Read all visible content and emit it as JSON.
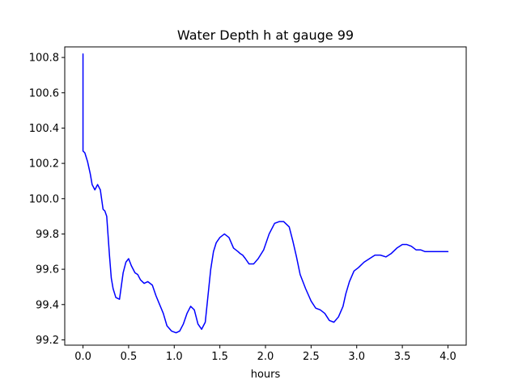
{
  "chart_data": {
    "type": "line",
    "title": "Water Depth h at gauge 99",
    "xlabel": "hours",
    "ylabel": "",
    "xlim": [
      -0.2,
      4.2
    ],
    "ylim": [
      99.17,
      100.86
    ],
    "xticks": [
      0.0,
      0.5,
      1.0,
      1.5,
      2.0,
      2.5,
      3.0,
      3.5,
      4.0
    ],
    "xtick_labels": [
      "0.0",
      "0.5",
      "1.0",
      "1.5",
      "2.0",
      "2.5",
      "3.0",
      "3.5",
      "4.0"
    ],
    "yticks": [
      99.2,
      99.4,
      99.6,
      99.8,
      100.0,
      100.2,
      100.4,
      100.6,
      100.8
    ],
    "ytick_labels": [
      "99.2",
      "99.4",
      "99.6",
      "99.8",
      "100.0",
      "100.2",
      "100.4",
      "100.6",
      "100.8"
    ],
    "grid": false,
    "legend": "none",
    "series": [
      {
        "color": "#0000ff",
        "x": [
          0.0,
          0.0,
          0.0,
          0.02,
          0.05,
          0.08,
          0.1,
          0.13,
          0.16,
          0.19,
          0.22,
          0.24,
          0.26,
          0.29,
          0.31,
          0.33,
          0.36,
          0.4,
          0.44,
          0.47,
          0.5,
          0.53,
          0.57,
          0.6,
          0.63,
          0.67,
          0.71,
          0.76,
          0.8,
          0.84,
          0.88,
          0.92,
          0.97,
          1.02,
          1.06,
          1.1,
          1.14,
          1.18,
          1.22,
          1.26,
          1.3,
          1.34,
          1.37,
          1.4,
          1.43,
          1.46,
          1.5,
          1.55,
          1.6,
          1.65,
          1.7,
          1.72,
          1.75,
          1.78,
          1.82,
          1.87,
          1.92,
          1.98,
          2.04,
          2.1,
          2.15,
          2.2,
          2.26,
          2.3,
          2.34,
          2.38,
          2.44,
          2.5,
          2.55,
          2.6,
          2.65,
          2.7,
          2.75,
          2.8,
          2.85,
          2.88,
          2.92,
          2.97,
          3.02,
          3.08,
          3.14,
          3.2,
          3.26,
          3.32,
          3.38,
          3.44,
          3.5,
          3.55,
          3.6,
          3.65,
          3.7,
          3.75,
          3.8,
          3.85,
          3.9,
          3.95,
          4.0
        ],
        "y": [
          100.82,
          100.27,
          100.27,
          100.26,
          100.21,
          100.14,
          100.08,
          100.05,
          100.08,
          100.05,
          99.94,
          99.93,
          99.9,
          99.68,
          99.55,
          99.49,
          99.44,
          99.43,
          99.58,
          99.64,
          99.66,
          99.62,
          99.58,
          99.57,
          99.54,
          99.52,
          99.53,
          99.51,
          99.45,
          99.4,
          99.35,
          99.28,
          99.25,
          99.24,
          99.25,
          99.29,
          99.35,
          99.39,
          99.37,
          99.29,
          99.26,
          99.3,
          99.45,
          99.6,
          99.7,
          99.75,
          99.78,
          99.8,
          99.78,
          99.72,
          99.7,
          99.69,
          99.68,
          99.66,
          99.63,
          99.63,
          99.66,
          99.71,
          99.8,
          99.86,
          99.87,
          99.87,
          99.84,
          99.76,
          99.67,
          99.57,
          99.49,
          99.42,
          99.38,
          99.37,
          99.35,
          99.31,
          99.3,
          99.33,
          99.39,
          99.46,
          99.53,
          99.59,
          99.61,
          99.64,
          99.66,
          99.68,
          99.68,
          99.67,
          99.69,
          99.72,
          99.74,
          99.74,
          99.73,
          99.71,
          99.71,
          99.7,
          99.7,
          99.7,
          99.7,
          99.7,
          99.7
        ]
      }
    ]
  }
}
